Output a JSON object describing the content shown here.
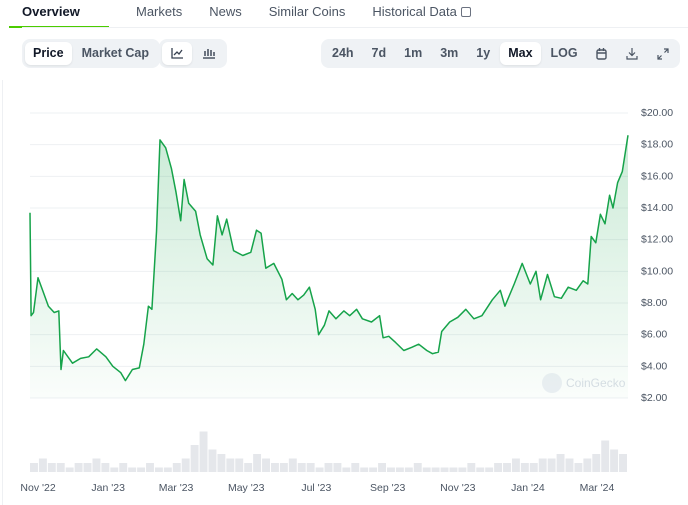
{
  "tabs": [
    {
      "label": "Overview",
      "active": true
    },
    {
      "label": "Markets"
    },
    {
      "label": "News"
    },
    {
      "label": "Similar Coins"
    },
    {
      "label": "Historical Data",
      "icon": "external-link-icon"
    }
  ],
  "toolbar": {
    "metric": [
      {
        "label": "Price",
        "selected": true
      },
      {
        "label": "Market Cap"
      }
    ],
    "chart_type": [
      {
        "icon": "line-chart-icon",
        "selected": true
      },
      {
        "icon": "candlestick-icon"
      }
    ],
    "ranges": [
      {
        "label": "24h"
      },
      {
        "label": "7d"
      },
      {
        "label": "1m"
      },
      {
        "label": "3m"
      },
      {
        "label": "1y"
      },
      {
        "label": "Max",
        "selected": true
      },
      {
        "label": "LOG"
      }
    ],
    "actions": [
      {
        "icon": "calendar-icon"
      },
      {
        "icon": "download-icon"
      },
      {
        "icon": "expand-icon"
      }
    ]
  },
  "watermark": "CoinGecko",
  "colors": {
    "line": "#16a34a",
    "accent": "#4bcc00",
    "grid": "#eef0f3",
    "volume": "#e5e7eb"
  },
  "chart_data": {
    "type": "area",
    "ylim": [
      2,
      20
    ],
    "yticks": [
      20,
      18,
      16,
      14,
      12,
      10,
      8,
      6,
      4,
      2
    ],
    "ytick_labels": [
      "$20.00",
      "$18.00",
      "$16.00",
      "$14.00",
      "$12.00",
      "$10.00",
      "$8.00",
      "$6.00",
      "$4.00",
      "$2.00"
    ],
    "xlim": [
      "2022-10-25",
      "2024-03-28"
    ],
    "xticks": [
      "2022-11-01",
      "2023-01-01",
      "2023-03-01",
      "2023-05-01",
      "2023-07-01",
      "2023-09-01",
      "2023-11-01",
      "2024-01-01",
      "2024-03-01"
    ],
    "xtick_labels": [
      "Nov '22",
      "Jan '23",
      "Mar '23",
      "May '23",
      "Jul '23",
      "Sep '23",
      "Nov '23",
      "Jan '24",
      "Mar '24"
    ],
    "grid": true,
    "series": [
      {
        "x": [
          "2022-10-25",
          "2022-10-26",
          "2022-10-28",
          "2022-11-01",
          "2022-11-05",
          "2022-11-10",
          "2022-11-15",
          "2022-11-19",
          "2022-11-21",
          "2022-11-23",
          "2022-12-01",
          "2022-12-08",
          "2022-12-15",
          "2022-12-22",
          "2022-12-30",
          "2023-01-05",
          "2023-01-12",
          "2023-01-16",
          "2023-01-22",
          "2023-01-28",
          "2023-02-01",
          "2023-02-05",
          "2023-02-08",
          "2023-02-12",
          "2023-02-15",
          "2023-02-20",
          "2023-02-25",
          "2023-03-01",
          "2023-03-05",
          "2023-03-08",
          "2023-03-12",
          "2023-03-18",
          "2023-03-22",
          "2023-03-28",
          "2023-04-02",
          "2023-04-06",
          "2023-04-10",
          "2023-04-14",
          "2023-04-20",
          "2023-04-28",
          "2023-05-05",
          "2023-05-10",
          "2023-05-14",
          "2023-05-18",
          "2023-05-25",
          "2023-06-01",
          "2023-06-05",
          "2023-06-10",
          "2023-06-15",
          "2023-06-20",
          "2023-06-25",
          "2023-06-30",
          "2023-07-03",
          "2023-07-08",
          "2023-07-12",
          "2023-07-18",
          "2023-07-25",
          "2023-07-30",
          "2023-08-05",
          "2023-08-10",
          "2023-08-18",
          "2023-08-25",
          "2023-08-28",
          "2023-09-02",
          "2023-09-08",
          "2023-09-15",
          "2023-09-22",
          "2023-09-28",
          "2023-10-05",
          "2023-10-10",
          "2023-10-15",
          "2023-10-18",
          "2023-10-25",
          "2023-11-01",
          "2023-11-08",
          "2023-11-15",
          "2023-11-22",
          "2023-12-01",
          "2023-12-08",
          "2023-12-12",
          "2023-12-20",
          "2023-12-27",
          "2024-01-03",
          "2024-01-08",
          "2024-01-12",
          "2024-01-18",
          "2024-01-24",
          "2024-01-30",
          "2024-02-05",
          "2024-02-12",
          "2024-02-18",
          "2024-02-22",
          "2024-02-25",
          "2024-02-29",
          "2024-03-04",
          "2024-03-08",
          "2024-03-12",
          "2024-03-15",
          "2024-03-19",
          "2024-03-23",
          "2024-03-28"
        ],
        "y": [
          13.7,
          7.2,
          7.4,
          9.6,
          8.8,
          7.8,
          7.4,
          7.5,
          3.8,
          5.0,
          4.2,
          4.5,
          4.6,
          5.1,
          4.6,
          4.0,
          3.6,
          3.1,
          3.8,
          3.9,
          5.4,
          7.8,
          7.6,
          12.5,
          18.3,
          17.8,
          16.5,
          15.0,
          13.2,
          15.8,
          14.3,
          13.8,
          12.3,
          10.8,
          10.4,
          13.5,
          12.3,
          13.3,
          11.3,
          11.0,
          11.2,
          12.6,
          12.4,
          10.2,
          10.5,
          9.5,
          8.2,
          8.6,
          8.2,
          8.5,
          9.0,
          7.6,
          6.0,
          6.6,
          7.5,
          7.0,
          7.5,
          7.2,
          7.6,
          7.0,
          6.8,
          7.2,
          5.8,
          5.9,
          5.5,
          5.0,
          5.2,
          5.4,
          5.0,
          4.8,
          4.9,
          6.2,
          6.8,
          7.1,
          7.6,
          7.0,
          7.2,
          8.2,
          8.8,
          7.8,
          9.2,
          10.5,
          9.2,
          10.0,
          8.2,
          9.8,
          8.4,
          8.3,
          9.0,
          8.8,
          9.4,
          9.2,
          12.2,
          11.8,
          13.6,
          13.0,
          14.8,
          14.0,
          15.6,
          16.3,
          18.6
        ]
      }
    ],
    "volume": [
      2,
      3,
      2,
      2,
      1,
      2,
      2,
      3,
      2,
      1,
      2,
      1,
      1,
      2,
      1,
      1,
      2,
      3,
      6,
      9,
      5,
      4,
      3,
      3,
      2,
      4,
      3,
      2,
      2,
      3,
      2,
      2,
      1,
      2,
      2,
      1,
      2,
      1,
      1,
      2,
      1,
      1,
      1,
      2,
      1,
      1,
      1,
      1,
      1,
      2,
      1,
      1,
      2,
      2,
      3,
      2,
      2,
      3,
      3,
      4,
      3,
      2,
      3,
      4,
      7,
      5,
      4
    ]
  }
}
